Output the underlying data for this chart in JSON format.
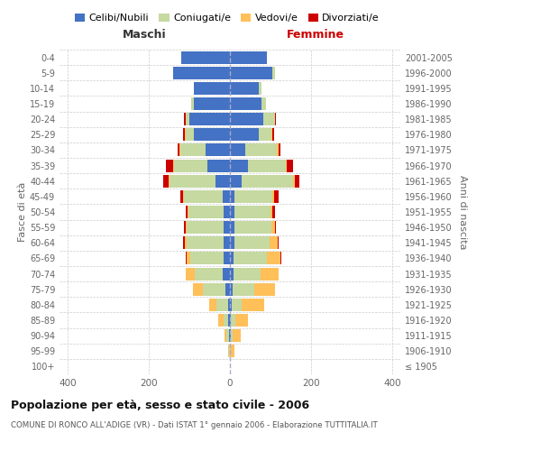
{
  "age_groups": [
    "100+",
    "95-99",
    "90-94",
    "85-89",
    "80-84",
    "75-79",
    "70-74",
    "65-69",
    "60-64",
    "55-59",
    "50-54",
    "45-49",
    "40-44",
    "35-39",
    "30-34",
    "25-29",
    "20-24",
    "15-19",
    "10-14",
    "5-9",
    "0-4"
  ],
  "birth_years": [
    "≤ 1905",
    "1906-1910",
    "1911-1915",
    "1916-1920",
    "1921-1925",
    "1926-1930",
    "1931-1935",
    "1936-1940",
    "1941-1945",
    "1946-1950",
    "1951-1955",
    "1956-1960",
    "1961-1965",
    "1966-1970",
    "1971-1975",
    "1976-1980",
    "1981-1985",
    "1986-1990",
    "1991-1995",
    "1996-2000",
    "2001-2005"
  ],
  "m_cel": [
    1,
    1,
    3,
    5,
    5,
    12,
    18,
    15,
    15,
    15,
    15,
    18,
    35,
    55,
    60,
    90,
    100,
    90,
    90,
    140,
    120
  ],
  "m_con": [
    0,
    2,
    5,
    10,
    28,
    55,
    68,
    82,
    92,
    92,
    88,
    95,
    115,
    82,
    62,
    20,
    8,
    5,
    0,
    0,
    0
  ],
  "m_ved": [
    0,
    2,
    6,
    15,
    18,
    25,
    22,
    10,
    5,
    3,
    2,
    2,
    2,
    2,
    3,
    2,
    2,
    0,
    0,
    0,
    0
  ],
  "m_div": [
    0,
    0,
    0,
    0,
    0,
    0,
    0,
    3,
    3,
    3,
    3,
    8,
    12,
    18,
    5,
    3,
    3,
    0,
    0,
    0,
    0
  ],
  "f_nub": [
    0,
    1,
    2,
    3,
    4,
    7,
    8,
    8,
    10,
    10,
    12,
    12,
    28,
    45,
    38,
    72,
    82,
    78,
    72,
    105,
    92
  ],
  "f_con": [
    0,
    2,
    5,
    10,
    25,
    52,
    68,
    82,
    88,
    92,
    88,
    92,
    128,
    92,
    78,
    30,
    28,
    10,
    5,
    5,
    0
  ],
  "f_ved": [
    1,
    8,
    20,
    32,
    55,
    52,
    45,
    35,
    20,
    10,
    5,
    5,
    5,
    3,
    3,
    3,
    2,
    0,
    0,
    0,
    0
  ],
  "f_div": [
    0,
    0,
    0,
    0,
    0,
    0,
    0,
    2,
    2,
    2,
    5,
    10,
    10,
    15,
    5,
    3,
    2,
    0,
    0,
    0,
    0
  ],
  "col_cel": "#4472c4",
  "col_con": "#c5d9a0",
  "col_ved": "#ffc05a",
  "col_div": "#cc0000",
  "xlim": 420,
  "title": "Popolazione per età, sesso e stato civile - 2006",
  "subtitle": "COMUNE DI RONCO ALL'ADIGE (VR) - Dati ISTAT 1° gennaio 2006 - Elaborazione TUTTITALIA.IT",
  "ylabel_left": "Fasce di età",
  "ylabel_right": "Anni di nascita",
  "xlabel_left": "Maschi",
  "xlabel_right": "Femmine"
}
